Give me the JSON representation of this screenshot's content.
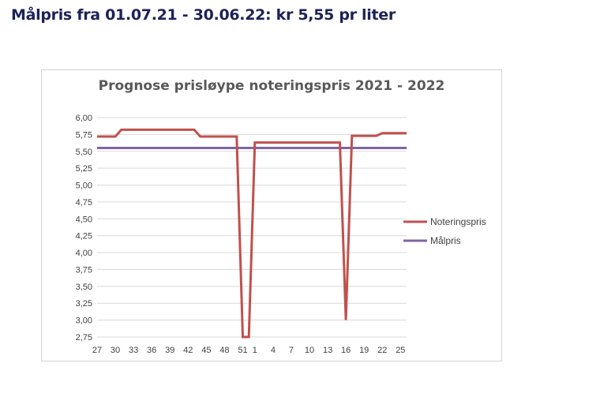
{
  "heading": "Målpris fra 01.07.21 - 30.06.22:  kr 5,55 pr liter",
  "chart_data": {
    "type": "line",
    "title": "Prognose prisløype noteringspris 2021 - 2022",
    "xlabel": "",
    "ylabel": "",
    "ylim": [
      2.75,
      6.0
    ],
    "y_ticks": [
      "6,00",
      "5,75",
      "5,50",
      "5,25",
      "5,00",
      "4,75",
      "4,50",
      "4,25",
      "4,00",
      "3,75",
      "3,50",
      "3,25",
      "3,00",
      "2,75"
    ],
    "x_ticks": [
      "27",
      "30",
      "33",
      "36",
      "39",
      "42",
      "45",
      "48",
      "51",
      "1",
      "4",
      "7",
      "10",
      "13",
      "16",
      "19",
      "22",
      "25"
    ],
    "categories": [
      "27",
      "28",
      "29",
      "30",
      "31",
      "32",
      "33",
      "34",
      "35",
      "36",
      "37",
      "38",
      "39",
      "40",
      "41",
      "42",
      "43",
      "44",
      "45",
      "46",
      "47",
      "48",
      "49",
      "50",
      "51",
      "52",
      "1",
      "2",
      "3",
      "4",
      "5",
      "6",
      "7",
      "8",
      "9",
      "10",
      "11",
      "12",
      "13",
      "14",
      "15",
      "16",
      "17",
      "18",
      "19",
      "20",
      "21",
      "22",
      "23",
      "24",
      "25",
      "26"
    ],
    "series": [
      {
        "name": "Noteringspris",
        "color": "#c0504d",
        "values": [
          5.72,
          5.72,
          5.72,
          5.72,
          5.82,
          5.82,
          5.82,
          5.82,
          5.82,
          5.82,
          5.82,
          5.82,
          5.82,
          5.82,
          5.82,
          5.82,
          5.82,
          5.72,
          5.72,
          5.72,
          5.72,
          5.72,
          5.72,
          5.72,
          2.75,
          2.75,
          5.63,
          5.63,
          5.63,
          5.63,
          5.63,
          5.63,
          5.63,
          5.63,
          5.63,
          5.63,
          5.63,
          5.63,
          5.63,
          5.63,
          5.63,
          3.0,
          5.73,
          5.73,
          5.73,
          5.73,
          5.73,
          5.77,
          5.77,
          5.77,
          5.77,
          5.77
        ]
      },
      {
        "name": "Målpris",
        "color": "#8064a2",
        "values": [
          5.55,
          5.55,
          5.55,
          5.55,
          5.55,
          5.55,
          5.55,
          5.55,
          5.55,
          5.55,
          5.55,
          5.55,
          5.55,
          5.55,
          5.55,
          5.55,
          5.55,
          5.55,
          5.55,
          5.55,
          5.55,
          5.55,
          5.55,
          5.55,
          5.55,
          5.55,
          5.55,
          5.55,
          5.55,
          5.55,
          5.55,
          5.55,
          5.55,
          5.55,
          5.55,
          5.55,
          5.55,
          5.55,
          5.55,
          5.55,
          5.55,
          5.55,
          5.55,
          5.55,
          5.55,
          5.55,
          5.55,
          5.55,
          5.55,
          5.55,
          5.55,
          5.55
        ]
      }
    ],
    "legend_position": "right",
    "grid": true
  }
}
